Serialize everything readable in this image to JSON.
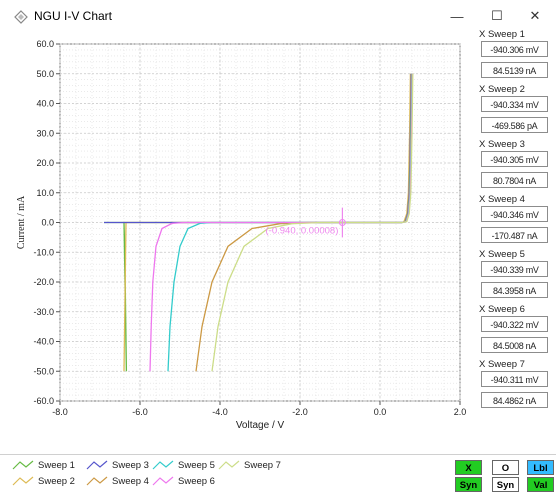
{
  "window": {
    "title": "NGU I-V Chart",
    "minimize_glyph": "—",
    "maximize_glyph": "☐",
    "close_glyph": "✕"
  },
  "sweep_readouts": [
    {
      "label": "X Sweep 1",
      "x_value": "-940.306 mV",
      "y_value": "84.5139 nA"
    },
    {
      "label": "X Sweep 2",
      "x_value": "-940.334 mV",
      "y_value": "-469.586 pA"
    },
    {
      "label": "X Sweep 3",
      "x_value": "-940.305 mV",
      "y_value": "80.7804 nA"
    },
    {
      "label": "X Sweep 4",
      "x_value": "-940.346 mV",
      "y_value": "-170.487 nA"
    },
    {
      "label": "X Sweep 5",
      "x_value": "-940.339 mV",
      "y_value": "84.3958 nA"
    },
    {
      "label": "X Sweep 6",
      "x_value": "-940.322 mV",
      "y_value": "84.5008 nA"
    },
    {
      "label": "X Sweep 7",
      "x_value": "-940.311 mV",
      "y_value": "84.4862 nA"
    }
  ],
  "buttons": {
    "x": {
      "label": "X",
      "color": "#22cc22"
    },
    "o": {
      "label": "O",
      "color": "#ffffff"
    },
    "lbl": {
      "label": "Lbl",
      "color": "#33bbff"
    },
    "syn1": {
      "label": "Syn",
      "color": "#22cc22"
    },
    "syn2": {
      "label": "Syn",
      "color": "#ffffff"
    },
    "val": {
      "label": "Val",
      "color": "#22cc22"
    }
  },
  "chart_data": {
    "type": "line",
    "xlabel": "Voltage / V",
    "ylabel": "Current / mA",
    "xlim": [
      -8.0,
      2.0
    ],
    "ylim": [
      -60.0,
      60.0
    ],
    "x_ticks": [
      "-8.0",
      "-6.0",
      "-4.0",
      "-2.0",
      "0.0",
      "2.0"
    ],
    "y_ticks": [
      "60.0",
      "50.0",
      "40.0",
      "30.0",
      "20.0",
      "10.0",
      "0.0",
      "-10.0",
      "-20.0",
      "-30.0",
      "-40.0",
      "-50.0",
      "-60.0"
    ],
    "grid": true,
    "legend": "bottom",
    "cursor": {
      "x": -0.94,
      "y": 8e-05,
      "label": "(-0.940, 0.00008)",
      "color": "#ee88ee"
    },
    "series": [
      {
        "name": "Sweep 1",
        "color": "#66bb44",
        "points": [
          [
            -6.9,
            0
          ],
          [
            -6.4,
            0
          ],
          [
            -6.38,
            -10
          ],
          [
            -6.36,
            -30
          ],
          [
            -6.34,
            -50
          ],
          [
            -6.4,
            0
          ],
          [
            0.55,
            0
          ],
          [
            0.62,
            0.3
          ],
          [
            0.68,
            3
          ],
          [
            0.72,
            10
          ],
          [
            0.75,
            30
          ],
          [
            0.77,
            50
          ]
        ]
      },
      {
        "name": "Sweep 2",
        "color": "#ddbb55",
        "points": [
          [
            -6.4,
            -50
          ],
          [
            -6.38,
            -30
          ],
          [
            -6.36,
            -10
          ],
          [
            -6.35,
            0
          ],
          [
            0.55,
            0
          ],
          [
            0.6,
            0.3
          ],
          [
            0.67,
            3
          ],
          [
            0.71,
            10
          ],
          [
            0.74,
            30
          ],
          [
            0.76,
            50
          ]
        ]
      },
      {
        "name": "Sweep 3",
        "color": "#5555cc",
        "points": [
          [
            -6.9,
            0
          ],
          [
            -6.05,
            0
          ],
          [
            0.55,
            0
          ],
          [
            0.63,
            0.3
          ],
          [
            0.69,
            3
          ],
          [
            0.73,
            10
          ],
          [
            0.76,
            30
          ],
          [
            0.78,
            50
          ]
        ]
      },
      {
        "name": "Sweep 4",
        "color": "#cc9944",
        "points": [
          [
            -4.6,
            -50
          ],
          [
            -4.45,
            -35
          ],
          [
            -4.2,
            -20
          ],
          [
            -3.8,
            -8
          ],
          [
            -3.2,
            -2
          ],
          [
            -2.5,
            -0.4
          ],
          [
            -1.8,
            0
          ],
          [
            0.55,
            0
          ],
          [
            0.64,
            0.3
          ],
          [
            0.7,
            3
          ],
          [
            0.74,
            10
          ],
          [
            0.77,
            30
          ],
          [
            0.79,
            50
          ]
        ]
      },
      {
        "name": "Sweep 5",
        "color": "#33cccc",
        "points": [
          [
            -5.3,
            -50
          ],
          [
            -5.25,
            -35
          ],
          [
            -5.15,
            -20
          ],
          [
            -5.0,
            -8
          ],
          [
            -4.8,
            -2
          ],
          [
            -4.5,
            -0.3
          ],
          [
            -4.2,
            0
          ],
          [
            0.55,
            0
          ],
          [
            0.65,
            0.3
          ],
          [
            0.71,
            3
          ],
          [
            0.75,
            10
          ],
          [
            0.78,
            30
          ],
          [
            0.8,
            50
          ]
        ]
      },
      {
        "name": "Sweep 6",
        "color": "#ee77ee",
        "points": [
          [
            -5.75,
            -50
          ],
          [
            -5.72,
            -35
          ],
          [
            -5.68,
            -20
          ],
          [
            -5.6,
            -8
          ],
          [
            -5.45,
            -2
          ],
          [
            -5.2,
            -0.3
          ],
          [
            -4.9,
            0
          ],
          [
            0.55,
            0
          ],
          [
            0.66,
            0.3
          ],
          [
            0.72,
            3
          ],
          [
            0.76,
            10
          ],
          [
            0.79,
            30
          ],
          [
            0.81,
            50
          ]
        ]
      },
      {
        "name": "Sweep 7",
        "color": "#ccdd88",
        "points": [
          [
            -4.2,
            -50
          ],
          [
            -4.05,
            -35
          ],
          [
            -3.8,
            -20
          ],
          [
            -3.4,
            -8
          ],
          [
            -2.8,
            -2
          ],
          [
            -2.2,
            -0.4
          ],
          [
            -1.5,
            0
          ],
          [
            0.55,
            0
          ],
          [
            0.67,
            0.3
          ],
          [
            0.73,
            3
          ],
          [
            0.77,
            10
          ],
          [
            0.8,
            30
          ],
          [
            0.82,
            50
          ]
        ]
      }
    ]
  }
}
